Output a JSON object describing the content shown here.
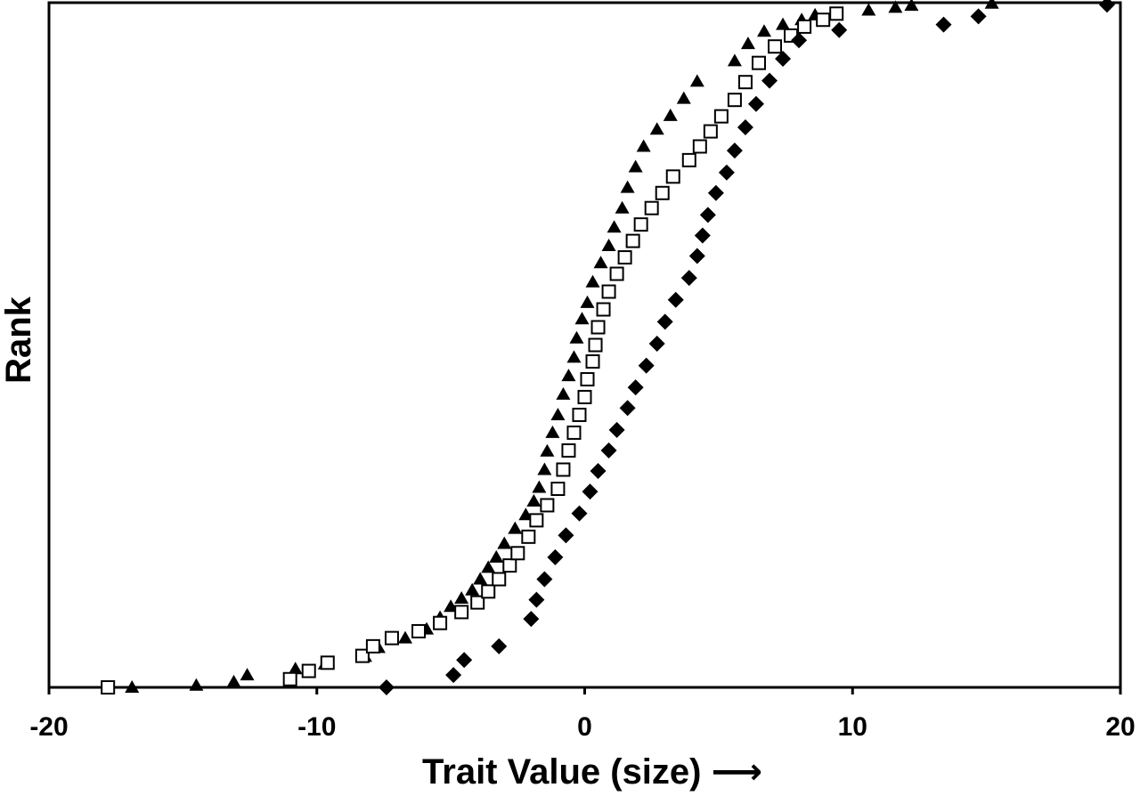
{
  "chart_data": {
    "type": "scatter",
    "title": "",
    "xlabel": "Trait Value (size) ⟶",
    "ylabel": "Rank",
    "xlim": [
      -20,
      20
    ],
    "ylim": [
      0,
      1
    ],
    "xticks": [
      -20,
      -10,
      0,
      10,
      20
    ],
    "xtick_labels": [
      "-20",
      "-10",
      "0",
      "10",
      "20"
    ],
    "yticks_shown": false,
    "grid": false,
    "legend": null,
    "series": [
      {
        "marker": "filled-triangle",
        "color": "#000000",
        "points": [
          [
            -16.9,
            0.0
          ],
          [
            -14.5,
            0.003
          ],
          [
            -13.1,
            0.008
          ],
          [
            -12.6,
            0.018
          ],
          [
            -10.8,
            0.027
          ],
          [
            -9.7,
            0.034
          ],
          [
            -8.2,
            0.045
          ],
          [
            -7.7,
            0.058
          ],
          [
            -6.7,
            0.072
          ],
          [
            -5.9,
            0.085
          ],
          [
            -5.4,
            0.102
          ],
          [
            -5.0,
            0.118
          ],
          [
            -4.6,
            0.13
          ],
          [
            -4.2,
            0.142
          ],
          [
            -3.9,
            0.158
          ],
          [
            -3.6,
            0.175
          ],
          [
            -3.3,
            0.19
          ],
          [
            -3.0,
            0.21
          ],
          [
            -2.6,
            0.232
          ],
          [
            -2.2,
            0.252
          ],
          [
            -1.9,
            0.272
          ],
          [
            -1.7,
            0.292
          ],
          [
            -1.5,
            0.318
          ],
          [
            -1.4,
            0.345
          ],
          [
            -1.2,
            0.372
          ],
          [
            -1.0,
            0.398
          ],
          [
            -0.8,
            0.428
          ],
          [
            -0.6,
            0.455
          ],
          [
            -0.4,
            0.482
          ],
          [
            -0.3,
            0.51
          ],
          [
            -0.1,
            0.538
          ],
          [
            0.1,
            0.562
          ],
          [
            0.3,
            0.592
          ],
          [
            0.6,
            0.62
          ],
          [
            0.9,
            0.645
          ],
          [
            1.1,
            0.672
          ],
          [
            1.4,
            0.7
          ],
          [
            1.6,
            0.73
          ],
          [
            1.9,
            0.76
          ],
          [
            2.2,
            0.79
          ],
          [
            2.7,
            0.815
          ],
          [
            3.2,
            0.835
          ],
          [
            3.7,
            0.86
          ],
          [
            4.2,
            0.885
          ],
          [
            5.6,
            0.915
          ],
          [
            6.1,
            0.94
          ],
          [
            6.7,
            0.958
          ],
          [
            7.4,
            0.968
          ],
          [
            8.1,
            0.975
          ],
          [
            8.6,
            0.982
          ],
          [
            10.6,
            0.989
          ],
          [
            11.6,
            0.993
          ],
          [
            12.2,
            0.996
          ],
          [
            15.2,
            0.999
          ]
        ]
      },
      {
        "marker": "open-square",
        "color": "#000000",
        "points": [
          [
            -17.8,
            0.0
          ],
          [
            -11.0,
            0.012
          ],
          [
            -10.3,
            0.024
          ],
          [
            -9.6,
            0.036
          ],
          [
            -8.3,
            0.046
          ],
          [
            -7.9,
            0.06
          ],
          [
            -7.2,
            0.072
          ],
          [
            -6.2,
            0.082
          ],
          [
            -5.4,
            0.094
          ],
          [
            -4.6,
            0.11
          ],
          [
            -4.0,
            0.124
          ],
          [
            -3.6,
            0.14
          ],
          [
            -3.2,
            0.158
          ],
          [
            -2.8,
            0.178
          ],
          [
            -2.5,
            0.196
          ],
          [
            -2.1,
            0.22
          ],
          [
            -1.8,
            0.244
          ],
          [
            -1.4,
            0.266
          ],
          [
            -1.0,
            0.29
          ],
          [
            -0.8,
            0.318
          ],
          [
            -0.6,
            0.346
          ],
          [
            -0.4,
            0.372
          ],
          [
            -0.2,
            0.398
          ],
          [
            0.0,
            0.424
          ],
          [
            0.1,
            0.45
          ],
          [
            0.3,
            0.476
          ],
          [
            0.4,
            0.5
          ],
          [
            0.5,
            0.526
          ],
          [
            0.7,
            0.552
          ],
          [
            0.9,
            0.578
          ],
          [
            1.2,
            0.604
          ],
          [
            1.5,
            0.628
          ],
          [
            1.8,
            0.652
          ],
          [
            2.1,
            0.676
          ],
          [
            2.5,
            0.7
          ],
          [
            2.9,
            0.722
          ],
          [
            3.3,
            0.746
          ],
          [
            3.9,
            0.77
          ],
          [
            4.3,
            0.79
          ],
          [
            4.7,
            0.812
          ],
          [
            5.1,
            0.834
          ],
          [
            5.6,
            0.858
          ],
          [
            6.0,
            0.884
          ],
          [
            6.5,
            0.912
          ],
          [
            7.1,
            0.936
          ],
          [
            7.7,
            0.952
          ],
          [
            8.2,
            0.965
          ],
          [
            8.9,
            0.975
          ],
          [
            9.4,
            0.984
          ]
        ]
      },
      {
        "marker": "filled-diamond",
        "color": "#000000",
        "points": [
          [
            -7.4,
            0.0
          ],
          [
            -4.9,
            0.018
          ],
          [
            -4.5,
            0.04
          ],
          [
            -3.2,
            0.06
          ],
          [
            -2.0,
            0.1
          ],
          [
            -1.8,
            0.128
          ],
          [
            -1.5,
            0.158
          ],
          [
            -1.1,
            0.19
          ],
          [
            -0.7,
            0.222
          ],
          [
            -0.2,
            0.254
          ],
          [
            0.2,
            0.286
          ],
          [
            0.5,
            0.316
          ],
          [
            0.9,
            0.346
          ],
          [
            1.2,
            0.376
          ],
          [
            1.6,
            0.408
          ],
          [
            1.9,
            0.438
          ],
          [
            2.3,
            0.47
          ],
          [
            2.7,
            0.502
          ],
          [
            3.0,
            0.534
          ],
          [
            3.4,
            0.566
          ],
          [
            3.9,
            0.598
          ],
          [
            4.2,
            0.63
          ],
          [
            4.4,
            0.66
          ],
          [
            4.6,
            0.69
          ],
          [
            4.9,
            0.722
          ],
          [
            5.3,
            0.752
          ],
          [
            5.6,
            0.784
          ],
          [
            6.0,
            0.818
          ],
          [
            6.4,
            0.852
          ],
          [
            6.9,
            0.886
          ],
          [
            7.4,
            0.918
          ],
          [
            8.0,
            0.945
          ],
          [
            9.5,
            0.96
          ],
          [
            13.4,
            0.968
          ],
          [
            14.7,
            0.98
          ],
          [
            19.5,
            0.997
          ]
        ]
      }
    ]
  }
}
